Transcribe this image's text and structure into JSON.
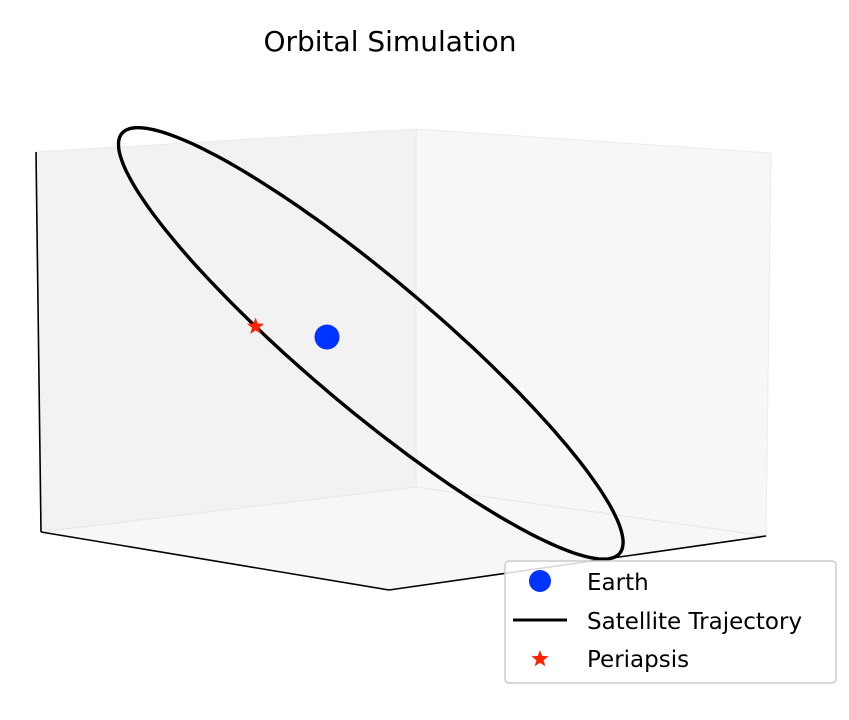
{
  "chart_data": {
    "type": "3d-line",
    "title": "Orbital Simulation",
    "xlabel": "",
    "ylabel": "",
    "zlabel": "",
    "grid": false,
    "axes_ticks_visible": false,
    "legend_position": "lower-right",
    "series": [
      {
        "name": "Earth",
        "kind": "marker",
        "marker": "circle",
        "color": "#0033ff",
        "points": [
          [
            0,
            0,
            0
          ]
        ]
      },
      {
        "name": "Satellite Trajectory",
        "kind": "line",
        "color": "#000000",
        "orbit": {
          "semi_major_axis": 1.6,
          "eccentricity": 0.38,
          "inclination_deg": 45,
          "samples": 200
        }
      },
      {
        "name": "Periapsis",
        "kind": "marker",
        "marker": "star",
        "color": "#ff2200",
        "points": [
          [
            1.0,
            0,
            0
          ]
        ]
      }
    ]
  }
}
